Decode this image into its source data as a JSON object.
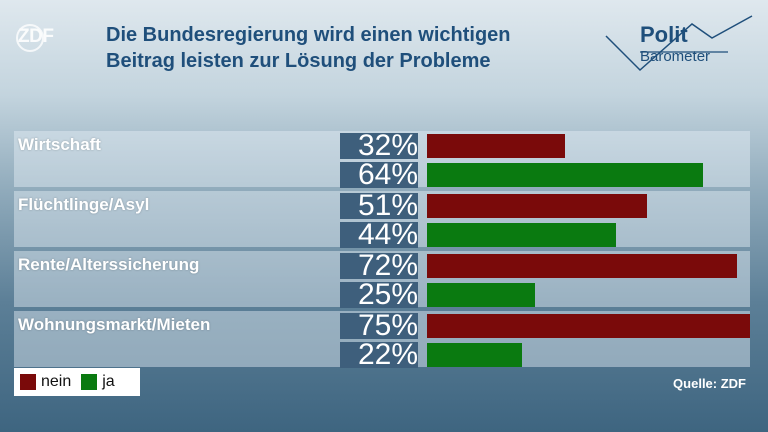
{
  "logo": {
    "text": "ZDF"
  },
  "header": {
    "title_line1": "Die Bundesregierung wird einen wichtigen",
    "title_line2": "Beitrag leisten zur Lösung der Probleme"
  },
  "brand": {
    "line1": "Polit",
    "line2": "Barometer"
  },
  "colors": {
    "nein": "#7a0a0a",
    "ja": "#0a7a10",
    "pct_bg": "#3e5f7c"
  },
  "chart_data": {
    "type": "bar",
    "orientation": "horizontal",
    "categories": [
      "Wirtschaft",
      "Flüchtlinge/Asyl",
      "Rente/Alterssicherung",
      "Wohnungsmarkt/Mieten"
    ],
    "series": [
      {
        "name": "nein",
        "values": [
          32,
          51,
          72,
          75
        ],
        "labels": [
          "32%",
          "51%",
          "72%",
          "75%"
        ]
      },
      {
        "name": "ja",
        "values": [
          64,
          44,
          25,
          22
        ],
        "labels": [
          "64%",
          "44%",
          "25%",
          "22%"
        ]
      }
    ],
    "xlim": [
      0,
      75
    ]
  },
  "legend": {
    "nein": "nein",
    "ja": "ja"
  },
  "source": "Quelle: ZDF"
}
